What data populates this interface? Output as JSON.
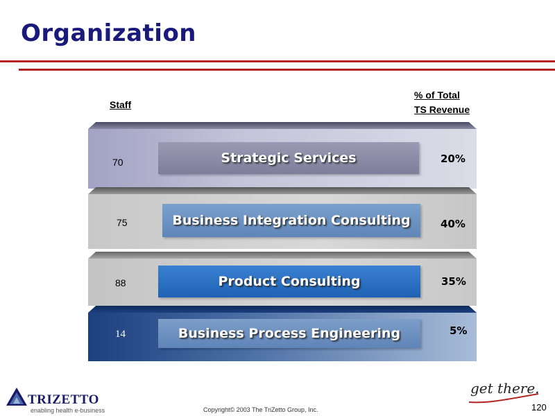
{
  "page_title": "Organization",
  "headers": {
    "staff": "Staff",
    "revenue_line1": "% of Total",
    "revenue_line2": "TS Revenue"
  },
  "rows": [
    {
      "name": "Strategic Services",
      "staff": "70",
      "revenue": "20%"
    },
    {
      "name": "Business Integration Consulting",
      "staff": "75",
      "revenue": "40%"
    },
    {
      "name": "Product Consulting",
      "staff": "88",
      "revenue": "35%"
    },
    {
      "name": "Business Process Engineering",
      "staff": "14",
      "revenue": "5%"
    }
  ],
  "footer": {
    "copyright": "Copyright© 2003 The TriZetto Group, Inc.",
    "page_number": "120",
    "logo_text": "TRIZETTO",
    "logo_tagline": "enabling health e-business",
    "slogan": "get there."
  },
  "colors": {
    "title": "#1a1a7a",
    "rule": "#b22222",
    "strategic_bar": "#8b8aa8",
    "integration_bar": "#6a8fc0",
    "product_bar": "#2a6fc0",
    "process_bar": "#5f86b8"
  }
}
